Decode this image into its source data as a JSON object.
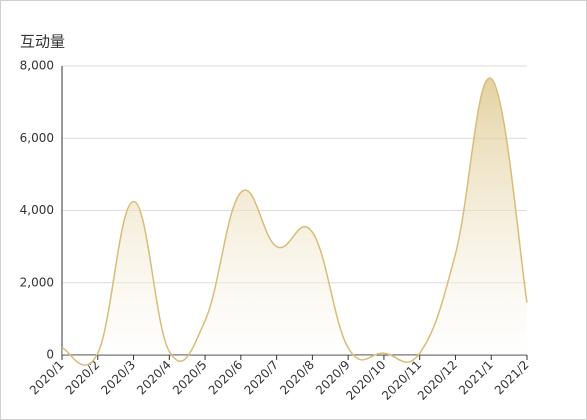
{
  "chart_data": {
    "type": "area",
    "y_label": "互动量",
    "categories": [
      "2020/1",
      "2020/2",
      "2020/3",
      "2020/4",
      "2020/5",
      "2020/6",
      "2020/7",
      "2020/8",
      "2020/9",
      "2020/10",
      "2020/11",
      "2020/12",
      "2021/1",
      "2021/2"
    ],
    "series": [
      {
        "name": "互动量",
        "color": "#d8bd78",
        "values": [
          200,
          50,
          4250,
          100,
          950,
          4500,
          3000,
          3400,
          200,
          50,
          50,
          2800,
          7650,
          1450
        ]
      }
    ],
    "ylim": [
      0,
      8000
    ],
    "yticks": [
      0,
      {
        "value": 2000,
        "label": "2,000"
      },
      {
        "value": 4000,
        "label": "4,000"
      },
      {
        "value": 6000,
        "label": "6,000"
      },
      {
        "value": 8000,
        "label": "8,000"
      }
    ],
    "grid": true
  }
}
